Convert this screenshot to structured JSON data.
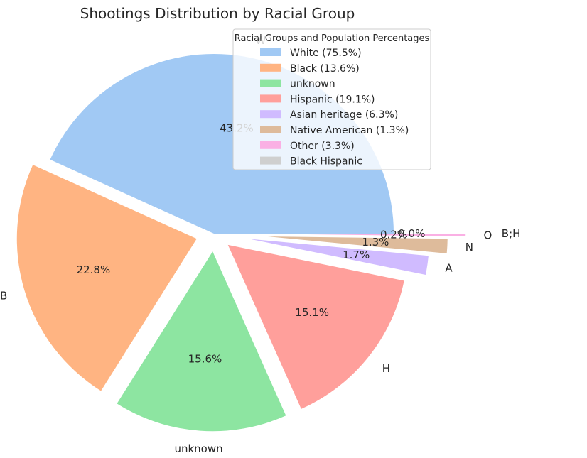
{
  "chart_data": {
    "type": "pie",
    "title": "Shootings Distribution by Racial Group",
    "slices": [
      {
        "label": "W",
        "value": 43.2,
        "pct_label": "43.2%",
        "color": "#a1c9f4"
      },
      {
        "label": "B",
        "value": 22.8,
        "pct_label": "22.8%",
        "color": "#ffb482"
      },
      {
        "label": "unknown",
        "value": 15.6,
        "pct_label": "15.6%",
        "color": "#8de5a1"
      },
      {
        "label": "H",
        "value": 15.1,
        "pct_label": "15.1%",
        "color": "#ff9f9b"
      },
      {
        "label": "A",
        "value": 1.7,
        "pct_label": "1.7%",
        "color": "#d0bbff"
      },
      {
        "label": "N",
        "value": 1.3,
        "pct_label": "1.3%",
        "color": "#debb9b"
      },
      {
        "label": "O",
        "value": 0.2,
        "pct_label": "0.2%",
        "color": "#fab0e4"
      },
      {
        "label": "B;H",
        "value": 0.0,
        "pct_label": "0.0%",
        "color": "#cfcfcf"
      }
    ],
    "legend": {
      "title": "Racial Groups and Population Percentages",
      "placement": "top-right",
      "entries": [
        {
          "label": "White (75.5%)",
          "color": "#a1c9f4"
        },
        {
          "label": "Black (13.6%)",
          "color": "#ffb482"
        },
        {
          "label": "unknown",
          "color": "#8de5a1"
        },
        {
          "label": "Hispanic (19.1%)",
          "color": "#ff9f9b"
        },
        {
          "label": "Asian heritage (6.3%)",
          "color": "#d0bbff"
        },
        {
          "label": "Native American (1.3%)",
          "color": "#debb9b"
        },
        {
          "label": "Other (3.3%)",
          "color": "#fab0e4"
        },
        {
          "label": "Black Hispanic",
          "color": "#cfcfcf"
        }
      ]
    }
  }
}
